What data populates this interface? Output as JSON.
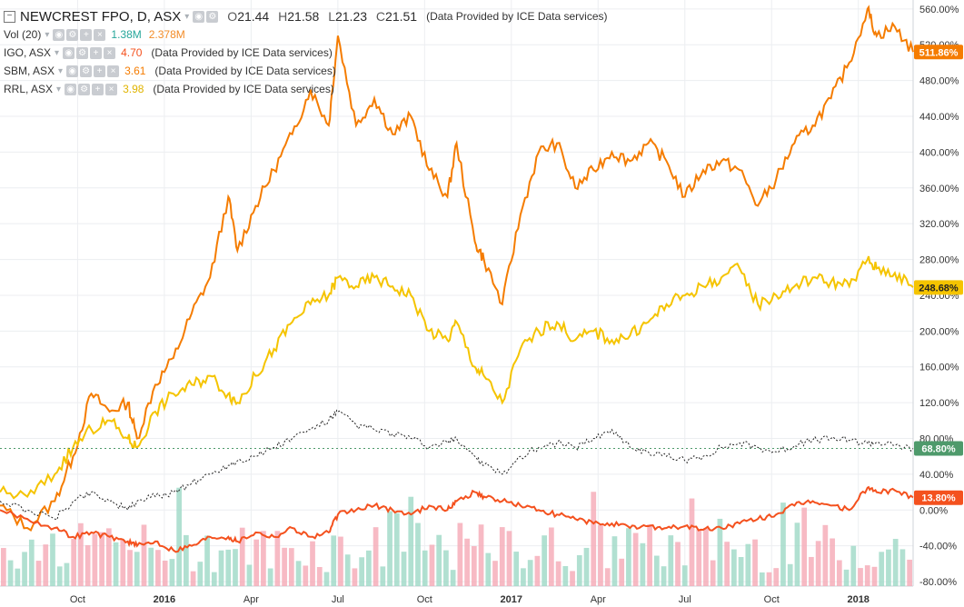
{
  "header": {
    "symbol": "NEWCREST FPO, D, ASX",
    "open_label": "O",
    "open": "21.44",
    "high_label": "H",
    "high": "21.58",
    "low_label": "L",
    "low": "21.23",
    "close_label": "C",
    "close": "21.51",
    "provider": "(Data Provided by ICE Data services)"
  },
  "legend": {
    "vol": {
      "name": "Vol (20)",
      "v1": "1.38M",
      "v2": "2.378M",
      "v1_color": "#26a69a",
      "v2_color": "#f28c28"
    },
    "igo": {
      "name": "IGO, ASX",
      "value": "4.70",
      "color": "#f4511e",
      "note": "(Data Provided by ICE Data services)"
    },
    "sbm": {
      "name": "SBM, ASX",
      "value": "3.61",
      "color": "#f57c00",
      "note": "(Data Provided by ICE Data services)"
    },
    "rrl": {
      "name": "RRL, ASX",
      "value": "3.98",
      "color": "#f5c400",
      "note": "(Data Provided by ICE Data services)"
    }
  },
  "chart_data": {
    "type": "line",
    "y_axis_ticks": [
      "560.00%",
      "520.00%",
      "480.00%",
      "440.00%",
      "400.00%",
      "360.00%",
      "320.00%",
      "280.00%",
      "240.00%",
      "200.00%",
      "160.00%",
      "120.00%",
      "80.00%",
      "40.00%",
      "0.00%",
      "-40.00%",
      "-80.00%"
    ],
    "ylim": [
      -85,
      570
    ],
    "x_axis_ticks": [
      "Oct",
      "2016",
      "Apr",
      "Jul",
      "Oct",
      "2017",
      "Apr",
      "Jul",
      "Oct",
      "2018"
    ],
    "x_tick_positions": [
      0.085,
      0.18,
      0.275,
      0.37,
      0.465,
      0.56,
      0.655,
      0.75,
      0.845,
      0.94
    ],
    "last_value_badges": [
      {
        "label": "511.86%",
        "value": 511.86,
        "color": "#f57c00",
        "text_color": "#ffffff"
      },
      {
        "label": "248.68%",
        "value": 248.68,
        "color": "#f5c400",
        "text_color": "#222222"
      },
      {
        "label": "68.80%",
        "value": 68.8,
        "color": "#4e9a6b",
        "text_color": "#ffffff"
      },
      {
        "label": "13.80%",
        "value": 13.8,
        "color": "#f4511e",
        "text_color": "#ffffff"
      }
    ],
    "series": [
      {
        "name": "SBM, ASX",
        "color": "#f57c00",
        "x": [
          0.0,
          0.03,
          0.06,
          0.08,
          0.1,
          0.12,
          0.14,
          0.15,
          0.17,
          0.19,
          0.21,
          0.23,
          0.25,
          0.26,
          0.28,
          0.3,
          0.32,
          0.34,
          0.36,
          0.37,
          0.39,
          0.41,
          0.43,
          0.45,
          0.47,
          0.49,
          0.5,
          0.52,
          0.53,
          0.55,
          0.57,
          0.59,
          0.61,
          0.63,
          0.65,
          0.67,
          0.69,
          0.71,
          0.73,
          0.75,
          0.77,
          0.79,
          0.81,
          0.83,
          0.85,
          0.87,
          0.89,
          0.91,
          0.93,
          0.95,
          0.96,
          0.98,
          1.0
        ],
        "values": [
          5,
          -20,
          10,
          60,
          130,
          110,
          120,
          80,
          140,
          170,
          220,
          260,
          350,
          290,
          340,
          380,
          420,
          470,
          430,
          530,
          430,
          460,
          420,
          440,
          380,
          350,
          410,
          300,
          280,
          230,
          330,
          400,
          410,
          360,
          380,
          400,
          390,
          410,
          390,
          350,
          380,
          390,
          380,
          340,
          370,
          410,
          430,
          460,
          500,
          560,
          530,
          540,
          512
        ]
      },
      {
        "name": "RRL, ASX",
        "color": "#f5c400",
        "x": [
          0.0,
          0.03,
          0.06,
          0.08,
          0.1,
          0.12,
          0.14,
          0.15,
          0.17,
          0.19,
          0.21,
          0.23,
          0.25,
          0.26,
          0.28,
          0.3,
          0.32,
          0.34,
          0.36,
          0.37,
          0.39,
          0.41,
          0.43,
          0.45,
          0.47,
          0.49,
          0.5,
          0.52,
          0.53,
          0.55,
          0.57,
          0.59,
          0.61,
          0.63,
          0.65,
          0.67,
          0.69,
          0.71,
          0.73,
          0.75,
          0.77,
          0.79,
          0.81,
          0.83,
          0.85,
          0.87,
          0.89,
          0.91,
          0.93,
          0.95,
          0.96,
          0.98,
          1.0
        ],
        "values": [
          20,
          15,
          40,
          70,
          90,
          100,
          80,
          70,
          110,
          130,
          140,
          150,
          130,
          120,
          150,
          180,
          210,
          230,
          240,
          260,
          250,
          260,
          250,
          240,
          200,
          190,
          210,
          160,
          150,
          120,
          180,
          200,
          210,
          190,
          200,
          190,
          195,
          210,
          230,
          240,
          250,
          260,
          270,
          230,
          240,
          250,
          260,
          255,
          250,
          280,
          270,
          265,
          249
        ]
      },
      {
        "name": "NEWCREST FPO, ASX",
        "color": "#222222",
        "x": [
          0.0,
          0.03,
          0.06,
          0.08,
          0.1,
          0.12,
          0.14,
          0.15,
          0.17,
          0.19,
          0.21,
          0.23,
          0.25,
          0.26,
          0.28,
          0.3,
          0.32,
          0.34,
          0.36,
          0.37,
          0.39,
          0.41,
          0.43,
          0.45,
          0.47,
          0.49,
          0.5,
          0.52,
          0.53,
          0.55,
          0.57,
          0.59,
          0.61,
          0.63,
          0.65,
          0.67,
          0.69,
          0.71,
          0.73,
          0.75,
          0.77,
          0.79,
          0.81,
          0.83,
          0.85,
          0.87,
          0.89,
          0.91,
          0.93,
          0.95,
          0.96,
          0.98,
          1.0
        ],
        "values": [
          10,
          0,
          -10,
          10,
          20,
          10,
          0,
          10,
          15,
          20,
          30,
          40,
          50,
          55,
          60,
          70,
          80,
          90,
          100,
          110,
          95,
          90,
          85,
          80,
          70,
          75,
          80,
          60,
          50,
          40,
          60,
          70,
          75,
          70,
          80,
          90,
          70,
          65,
          60,
          55,
          60,
          70,
          75,
          70,
          65,
          72,
          78,
          80,
          78,
          75,
          76,
          72,
          69
        ]
      },
      {
        "name": "IGO, ASX",
        "color": "#f4511e",
        "x": [
          0.0,
          0.03,
          0.06,
          0.08,
          0.1,
          0.12,
          0.14,
          0.15,
          0.17,
          0.19,
          0.21,
          0.23,
          0.25,
          0.26,
          0.28,
          0.3,
          0.32,
          0.34,
          0.36,
          0.37,
          0.39,
          0.41,
          0.43,
          0.45,
          0.47,
          0.49,
          0.5,
          0.52,
          0.53,
          0.55,
          0.57,
          0.59,
          0.61,
          0.63,
          0.65,
          0.67,
          0.69,
          0.71,
          0.73,
          0.75,
          0.77,
          0.79,
          0.81,
          0.83,
          0.85,
          0.87,
          0.89,
          0.91,
          0.93,
          0.95,
          0.96,
          0.98,
          1.0
        ],
        "values": [
          0,
          -10,
          -20,
          -30,
          -25,
          -30,
          -35,
          -40,
          -35,
          -45,
          -40,
          -30,
          -30,
          -35,
          -25,
          -30,
          -20,
          -30,
          -25,
          -5,
          0,
          5,
          0,
          -5,
          5,
          0,
          10,
          20,
          15,
          10,
          5,
          0,
          -5,
          -10,
          -15,
          -15,
          -20,
          -18,
          -20,
          -18,
          -22,
          -20,
          -15,
          -10,
          -5,
          5,
          10,
          5,
          0,
          25,
          20,
          22,
          14
        ]
      }
    ],
    "volume_bar_count": 130
  }
}
